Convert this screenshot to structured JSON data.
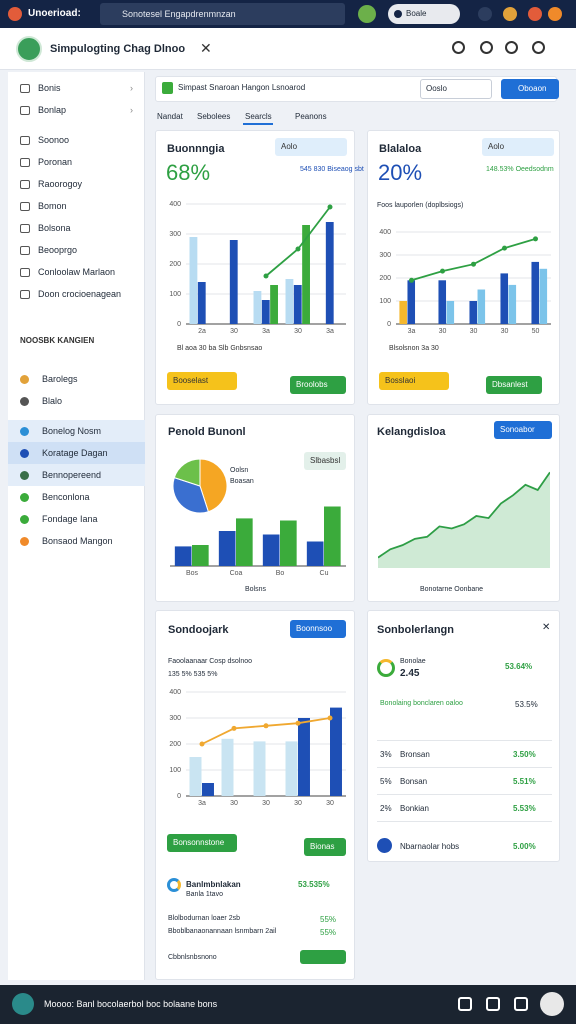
{
  "browser": {
    "tab": "Unoerioad:",
    "address": "Sonotesel Engapdrenmnzan",
    "search": "Boale"
  },
  "app": {
    "title": "Simpulogting Chag Dlnoo"
  },
  "sidebar": {
    "items": [
      "Bonis",
      "Bonlap",
      "Soonoo",
      "Poronan",
      "Raoorogoy",
      "Bomon",
      "Bolsona",
      "Beooprgo",
      "Conloolaw Marlaon",
      "Doon crocioenagean"
    ],
    "section": "NOOSBK KANGIEN",
    "items2": [
      "Barolegs",
      "Blalo",
      "Bonelog Nosm",
      "Koratage Dagan",
      "Bennopereend",
      "Benconlona",
      "Fondage Iana",
      "Bonsaod Mangon"
    ]
  },
  "toolbar": {
    "search": "Simpast Snaroan Hangon Lsnoarod",
    "field": "Ooslo",
    "button": "Oboaon",
    "tabs": [
      "Nandat",
      "Sebolees",
      "Searcls",
      "Peanons"
    ]
  },
  "cards": [
    {
      "title": "Buonnngia",
      "search": "Aolo",
      "big": "68%",
      "note": "545 830 Biseaog sbt",
      "legend": "Bl aoa 30 ba Slb Gnbsnsao",
      "button1": "Booselast",
      "button2": "Broolobs",
      "chart": {
        "type": "bar",
        "categories": [
          "2a",
          "30",
          "3a",
          "30",
          "3a"
        ],
        "ylim": [
          0,
          400
        ],
        "yticks": [
          0,
          100,
          200,
          300,
          400
        ],
        "series": [
          {
            "color": "#b8dcf2",
            "values": [
              290,
              0,
              110,
              150,
              0
            ]
          },
          {
            "color": "#1e4fb5",
            "values": [
              140,
              280,
              80,
              130,
              340
            ]
          },
          {
            "color": "#3bab3b",
            "values": [
              0,
              0,
              130,
              330,
              0
            ]
          },
          {
            "type": "line",
            "color": "#2ea043",
            "values": [
              null,
              null,
              160,
              250,
              390
            ]
          }
        ]
      }
    },
    {
      "title": "Blalaloa",
      "search": "Aolo",
      "big": "20%",
      "note": "148.53% Oeedsodnm",
      "sub": "Foos lauporlen (doplbsiogs)",
      "legend": "Blsolsnon 3a 30",
      "button1": "Bosslaoi",
      "button2": "Dbsanlest",
      "chart": {
        "type": "bar",
        "categories": [
          "3a",
          "30",
          "30",
          "30",
          "50"
        ],
        "ylim": [
          0,
          400
        ],
        "yticks": [
          0,
          100,
          200,
          300,
          400
        ],
        "series": [
          {
            "color": "#f5b82e",
            "values": [
              100,
              0,
              0,
              0,
              0
            ]
          },
          {
            "color": "#1e4fb5",
            "values": [
              190,
              190,
              100,
              220,
              270
            ]
          },
          {
            "color": "#7cc4ea",
            "values": [
              0,
              100,
              150,
              170,
              240
            ]
          },
          {
            "type": "line",
            "color": "#2ea043",
            "values": [
              190,
              230,
              260,
              330,
              370
            ]
          }
        ]
      }
    },
    {
      "title": "Penold Bunonl",
      "pill": "Slbasbsl",
      "pielabels": [
        "Oolsn",
        "Boasan"
      ],
      "legend": "Bolsns",
      "pie": {
        "type": "pie",
        "values": [
          45,
          35,
          20
        ],
        "colors": [
          "#f5a623",
          "#3a6fd0",
          "#6cc04a"
        ]
      },
      "chart": {
        "type": "bar",
        "categories": [
          "Bos",
          "Coa",
          "Bo",
          "Cu"
        ],
        "ylim": [
          0,
          100
        ],
        "series": [
          {
            "color": "#1e4fb5",
            "values": [
              28,
              50,
              45,
              35
            ]
          },
          {
            "color": "#3bab3b",
            "values": [
              30,
              68,
              65,
              85
            ]
          }
        ]
      }
    },
    {
      "title": "Kelangdisloa",
      "button": "Sonoabor",
      "legend": "Bonotarne Oonbane",
      "chart": {
        "type": "area",
        "color": "#2e9e46",
        "ylim": [
          0,
          100
        ],
        "values": [
          10,
          18,
          22,
          28,
          30,
          40,
          38,
          42,
          50,
          48,
          62,
          70,
          80,
          75,
          92
        ]
      }
    },
    {
      "title": "Sondoojark",
      "button": "Boonnsoo",
      "sub": "Faoolaanaar Cosp dsolnoo",
      "note": "135 5% 535 5%",
      "button1": "Bonsonnstone",
      "button2": "Bionas",
      "chart": {
        "type": "bar",
        "categories": [
          "3a",
          "30",
          "30",
          "30",
          "30"
        ],
        "ylim": [
          0,
          400
        ],
        "yticks": [
          0,
          100,
          200,
          300,
          400
        ],
        "series": [
          {
            "color": "#c9e4f2",
            "values": [
              150,
              220,
              210,
              210,
              0
            ]
          },
          {
            "color": "#1e4fb5",
            "values": [
              50,
              0,
              0,
              300,
              340
            ]
          },
          {
            "type": "line",
            "color": "#f0a830",
            "values": [
              200,
              260,
              270,
              280,
              300
            ]
          }
        ]
      },
      "rows": [
        {
          "label": "Banlmbnlakan",
          "sub": "Banla 1tavo",
          "value": "53.535%"
        },
        {
          "label": "Blolbodurnan loaer 2sb",
          "value": "55%"
        },
        {
          "label": "Bboblbanaonannaan lsnmbarn 2ail",
          "value": "55%"
        },
        {
          "label": "Cbbnlsnbsnono"
        }
      ]
    },
    {
      "title": "Sonbolerlangn",
      "head": {
        "label": "Bonolae",
        "value": "2.45",
        "pct": "53.64%"
      },
      "note": {
        "label": "Bonolaing bonclaren oaloo",
        "value": "53.5%"
      },
      "rows": [
        {
          "pct": "3%",
          "label": "Bronsan",
          "value": "3.50%"
        },
        {
          "pct": "5%",
          "label": "Bonsan",
          "value": "5.51%"
        },
        {
          "pct": "2%",
          "label": "Bonkian",
          "value": "5.53%"
        }
      ],
      "foot": {
        "label": "Nbarnaolar hobs",
        "value": "5.00%"
      }
    }
  ],
  "taskbar": {
    "text": "Moooo: Banl bocolaerbol boc bolaane bons"
  }
}
